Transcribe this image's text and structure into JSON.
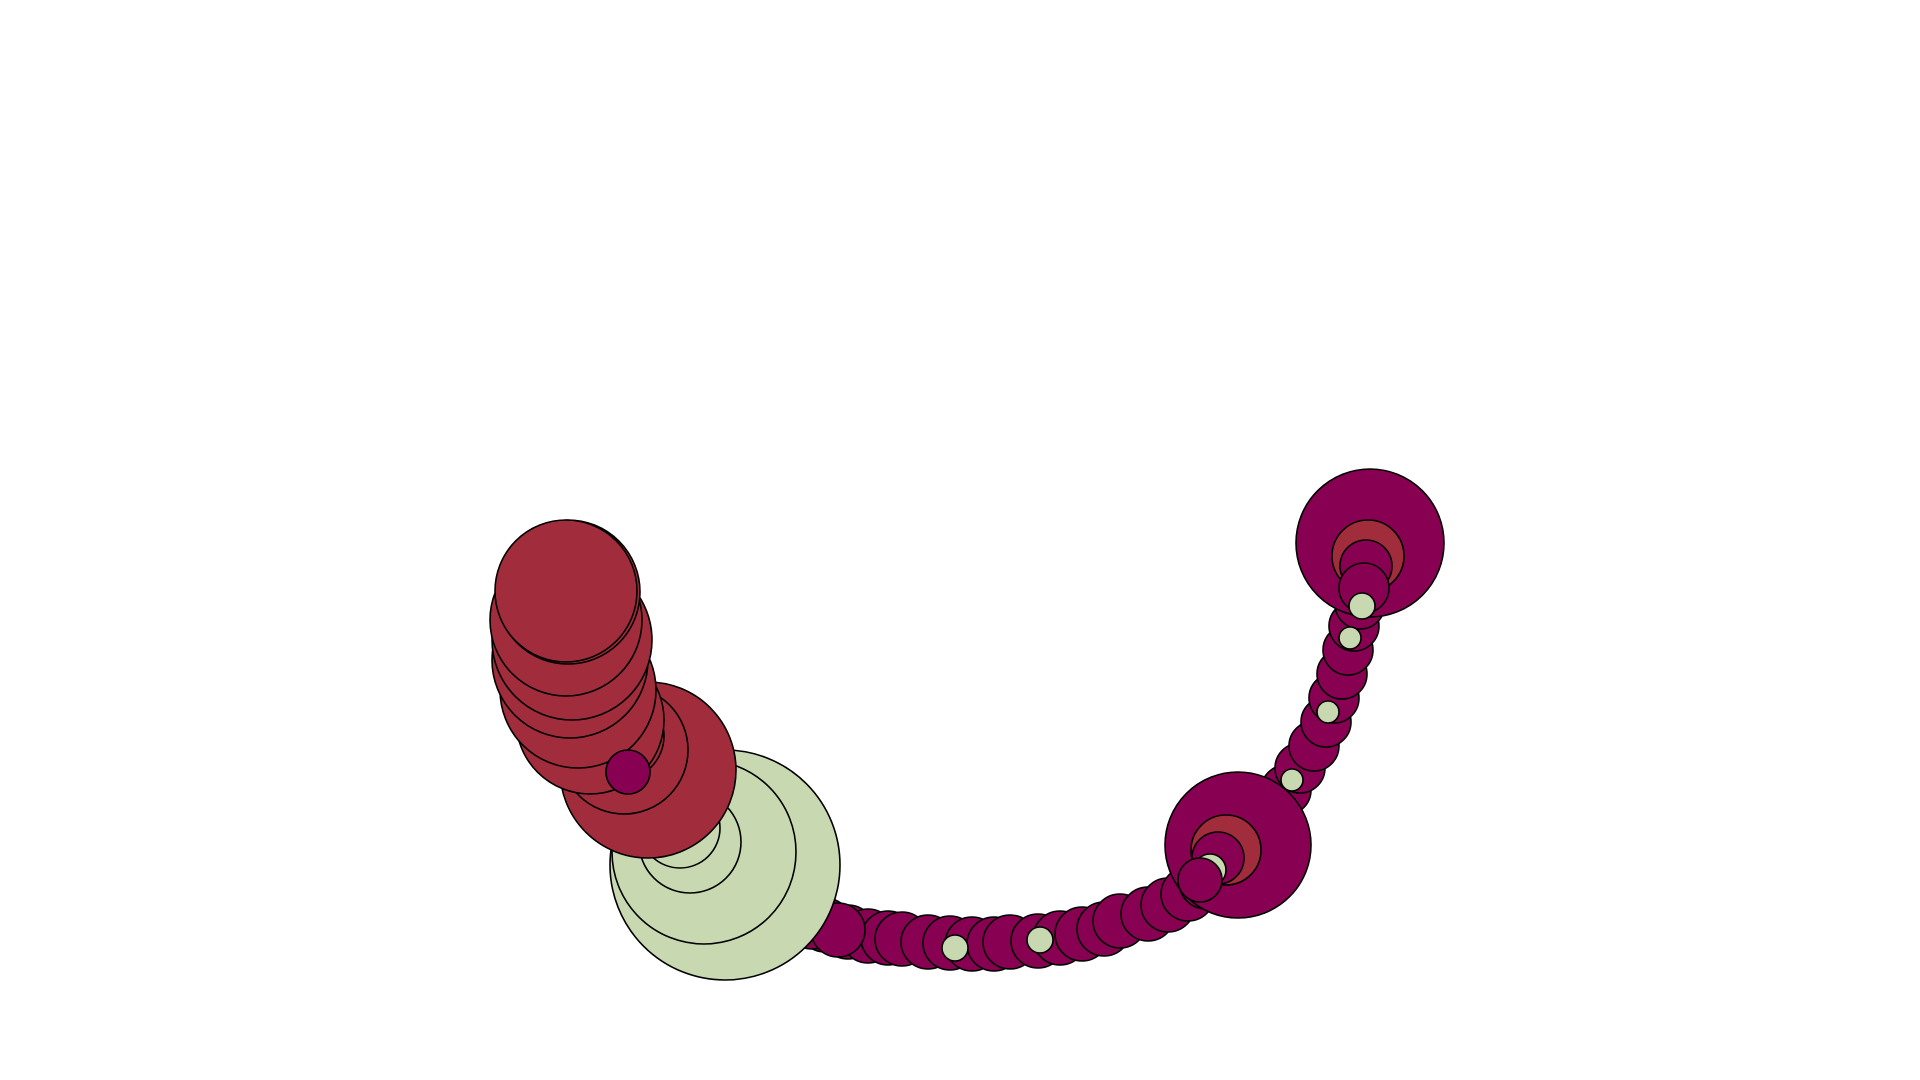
{
  "colors": {
    "background": "#ffffff",
    "red": "#a12d3c",
    "magenta": "#870052",
    "sage": "#c8d8b0",
    "outline": "#000000"
  }
}
